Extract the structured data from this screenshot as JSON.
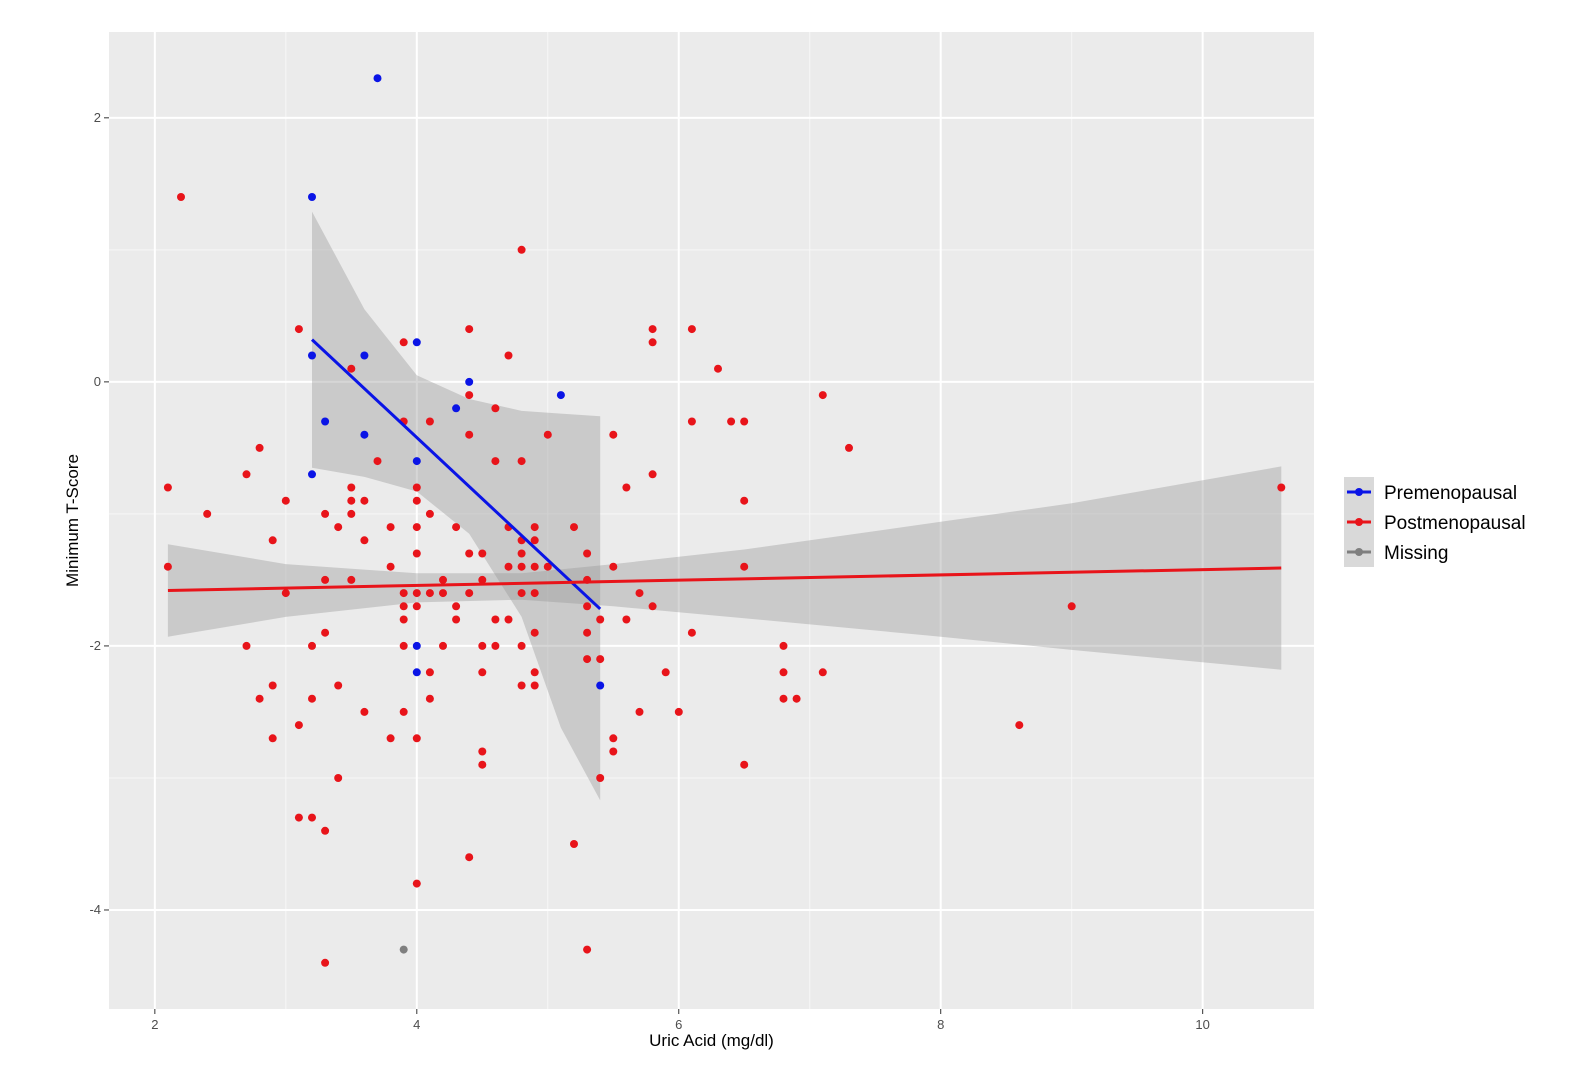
{
  "chart_data": {
    "type": "scatter",
    "xlabel": "Uric Acid (mg/dl)",
    "ylabel": "Minimum T-Score",
    "xlim": [
      1.65,
      10.85
    ],
    "ylim": [
      -4.75,
      2.65
    ],
    "x_ticks": [
      2,
      4,
      6,
      8,
      10
    ],
    "y_ticks": [
      -4,
      -2,
      0,
      2
    ],
    "x_tick_labels": [
      "2",
      "4",
      "6",
      "8",
      "10"
    ],
    "y_tick_labels": [
      "-4",
      "-2",
      "0",
      "2"
    ],
    "grid": true,
    "legend_position": "right",
    "series": [
      {
        "name": "Premenopausal",
        "color": "#0a14e6",
        "points": [
          [
            3.7,
            2.3
          ],
          [
            3.2,
            1.4
          ],
          [
            3.2,
            0.2
          ],
          [
            3.6,
            0.2
          ],
          [
            4.0,
            0.3
          ],
          [
            4.4,
            0.0
          ],
          [
            5.1,
            -0.1
          ],
          [
            3.3,
            -0.3
          ],
          [
            3.6,
            -0.4
          ],
          [
            4.3,
            -0.2
          ],
          [
            4.0,
            -0.6
          ],
          [
            3.2,
            -0.7
          ],
          [
            4.0,
            -2.0
          ],
          [
            4.0,
            -2.2
          ],
          [
            5.4,
            -2.3
          ]
        ],
        "fit": {
          "x": [
            3.2,
            5.4
          ],
          "y": [
            0.32,
            -1.72
          ]
        },
        "band": {
          "x": [
            3.2,
            3.6,
            4.0,
            4.4,
            4.8,
            5.1,
            5.4
          ],
          "upper": [
            1.29,
            0.55,
            0.05,
            -0.13,
            -0.22,
            -0.24,
            -0.26
          ],
          "lower": [
            -0.65,
            -0.72,
            -0.83,
            -1.15,
            -1.78,
            -2.62,
            -3.17
          ]
        }
      },
      {
        "name": "Postmenopausal",
        "color": "#e8141a",
        "points": [
          [
            2.2,
            1.4
          ],
          [
            2.1,
            -0.8
          ],
          [
            2.1,
            -1.4
          ],
          [
            2.4,
            -1.0
          ],
          [
            2.7,
            -0.7
          ],
          [
            2.8,
            -0.5
          ],
          [
            2.9,
            -1.2
          ],
          [
            2.7,
            -2.0
          ],
          [
            2.8,
            -2.4
          ],
          [
            2.9,
            -2.3
          ],
          [
            2.9,
            -2.7
          ],
          [
            3.0,
            -0.9
          ],
          [
            3.0,
            -1.6
          ],
          [
            3.1,
            0.4
          ],
          [
            3.1,
            -2.6
          ],
          [
            3.1,
            -3.3
          ],
          [
            3.2,
            -2.0
          ],
          [
            3.2,
            -2.4
          ],
          [
            3.2,
            -3.3
          ],
          [
            3.3,
            -1.0
          ],
          [
            3.3,
            -1.5
          ],
          [
            3.3,
            -1.9
          ],
          [
            3.3,
            -3.4
          ],
          [
            3.3,
            -4.4
          ],
          [
            3.4,
            -1.1
          ],
          [
            3.4,
            -2.3
          ],
          [
            3.4,
            -3.0
          ],
          [
            3.5,
            0.1
          ],
          [
            3.5,
            -0.8
          ],
          [
            3.5,
            -0.9
          ],
          [
            3.5,
            -1.0
          ],
          [
            3.5,
            -1.5
          ],
          [
            3.6,
            -0.9
          ],
          [
            3.6,
            -1.2
          ],
          [
            3.6,
            -2.5
          ],
          [
            3.7,
            -0.6
          ],
          [
            3.8,
            -1.1
          ],
          [
            3.8,
            -1.4
          ],
          [
            3.8,
            -2.7
          ],
          [
            3.9,
            0.3
          ],
          [
            3.9,
            -0.3
          ],
          [
            3.9,
            -1.6
          ],
          [
            3.9,
            -1.7
          ],
          [
            3.9,
            -1.8
          ],
          [
            3.9,
            -2.0
          ],
          [
            3.9,
            -2.5
          ],
          [
            4.0,
            -0.8
          ],
          [
            4.0,
            -0.9
          ],
          [
            4.0,
            -1.1
          ],
          [
            4.0,
            -1.3
          ],
          [
            4.0,
            -1.6
          ],
          [
            4.0,
            -1.7
          ],
          [
            4.0,
            -2.7
          ],
          [
            4.0,
            -3.8
          ],
          [
            4.1,
            -0.3
          ],
          [
            4.1,
            -1.0
          ],
          [
            4.1,
            -1.6
          ],
          [
            4.1,
            -2.2
          ],
          [
            4.1,
            -2.4
          ],
          [
            4.2,
            -1.5
          ],
          [
            4.2,
            -1.6
          ],
          [
            4.2,
            -2.0
          ],
          [
            4.3,
            -1.1
          ],
          [
            4.3,
            -1.7
          ],
          [
            4.3,
            -1.8
          ],
          [
            4.4,
            0.4
          ],
          [
            4.4,
            -0.1
          ],
          [
            4.4,
            -0.4
          ],
          [
            4.4,
            -1.3
          ],
          [
            4.4,
            -1.6
          ],
          [
            4.4,
            -3.6
          ],
          [
            4.5,
            -1.3
          ],
          [
            4.5,
            -1.5
          ],
          [
            4.5,
            -2.0
          ],
          [
            4.5,
            -2.2
          ],
          [
            4.5,
            -2.8
          ],
          [
            4.5,
            -2.9
          ],
          [
            4.6,
            -0.2
          ],
          [
            4.6,
            -0.6
          ],
          [
            4.6,
            -1.8
          ],
          [
            4.6,
            -2.0
          ],
          [
            4.7,
            0.2
          ],
          [
            4.7,
            -1.1
          ],
          [
            4.7,
            -1.4
          ],
          [
            4.7,
            -1.8
          ],
          [
            4.8,
            1.0
          ],
          [
            4.8,
            -0.6
          ],
          [
            4.8,
            -1.2
          ],
          [
            4.8,
            -1.3
          ],
          [
            4.8,
            -1.4
          ],
          [
            4.8,
            -1.6
          ],
          [
            4.8,
            -2.0
          ],
          [
            4.8,
            -2.3
          ],
          [
            4.9,
            -1.1
          ],
          [
            4.9,
            -1.2
          ],
          [
            4.9,
            -1.4
          ],
          [
            4.9,
            -1.6
          ],
          [
            4.9,
            -1.9
          ],
          [
            4.9,
            -2.2
          ],
          [
            4.9,
            -2.3
          ],
          [
            5.0,
            -0.4
          ],
          [
            5.0,
            -1.4
          ],
          [
            5.2,
            -1.1
          ],
          [
            5.2,
            -3.5
          ],
          [
            5.3,
            -1.3
          ],
          [
            5.3,
            -1.5
          ],
          [
            5.3,
            -1.7
          ],
          [
            5.3,
            -1.9
          ],
          [
            5.3,
            -2.1
          ],
          [
            5.3,
            -4.3
          ],
          [
            5.4,
            -1.8
          ],
          [
            5.4,
            -2.1
          ],
          [
            5.4,
            -3.0
          ],
          [
            5.5,
            -0.4
          ],
          [
            5.5,
            -1.4
          ],
          [
            5.5,
            -2.7
          ],
          [
            5.5,
            -2.8
          ],
          [
            5.6,
            -0.8
          ],
          [
            5.6,
            -1.8
          ],
          [
            5.7,
            -1.6
          ],
          [
            5.7,
            -2.5
          ],
          [
            5.8,
            0.4
          ],
          [
            5.8,
            0.3
          ],
          [
            5.8,
            -0.7
          ],
          [
            5.8,
            -1.7
          ],
          [
            5.9,
            -2.2
          ],
          [
            6.0,
            -2.5
          ],
          [
            6.1,
            0.4
          ],
          [
            6.1,
            -0.3
          ],
          [
            6.1,
            -1.9
          ],
          [
            6.3,
            0.1
          ],
          [
            6.4,
            -0.3
          ],
          [
            6.5,
            -0.3
          ],
          [
            6.5,
            -0.9
          ],
          [
            6.5,
            -1.4
          ],
          [
            6.5,
            -2.9
          ],
          [
            6.8,
            -2.0
          ],
          [
            6.8,
            -2.2
          ],
          [
            6.8,
            -2.4
          ],
          [
            6.9,
            -2.4
          ],
          [
            7.1,
            -0.1
          ],
          [
            7.1,
            -2.2
          ],
          [
            7.3,
            -0.5
          ],
          [
            8.6,
            -2.6
          ],
          [
            9.0,
            -1.7
          ],
          [
            10.6,
            -0.8
          ]
        ],
        "fit": {
          "x": [
            2.1,
            10.6
          ],
          "y": [
            -1.58,
            -1.41
          ]
        },
        "band": {
          "x": [
            2.1,
            3.0,
            4.0,
            4.8,
            5.5,
            6.5,
            8.0,
            9.0,
            10.6
          ],
          "upper": [
            -1.23,
            -1.38,
            -1.45,
            -1.45,
            -1.38,
            -1.27,
            -1.06,
            -0.92,
            -0.64
          ],
          "lower": [
            -1.93,
            -1.78,
            -1.67,
            -1.65,
            -1.7,
            -1.79,
            -1.93,
            -2.03,
            -2.18
          ]
        }
      },
      {
        "name": "Missing",
        "color": "#7f7f7f",
        "points": [
          [
            3.9,
            -4.3
          ]
        ]
      }
    ]
  }
}
